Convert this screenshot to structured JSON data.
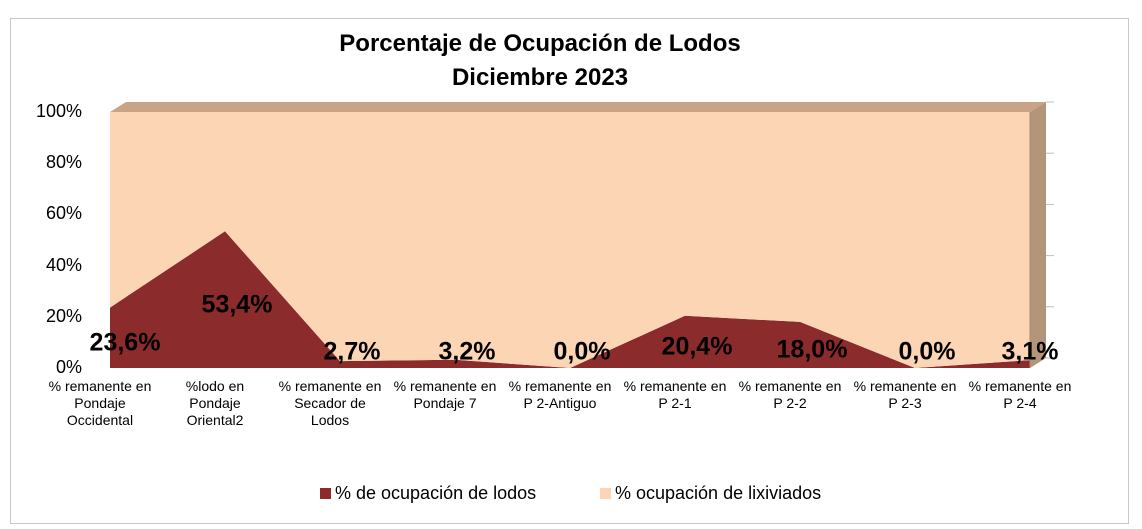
{
  "chart_data": {
    "type": "stacked_area",
    "title": "Porcentaje de Ocupación de Lodos",
    "subtitle": "Diciembre 2023",
    "categories": [
      "% remanente en Pondaje Occidental",
      "%lodo en Pondaje Oriental2",
      "% remanente en Secador de Lodos",
      "% remanente en Pondaje 7",
      "% remanente en P 2-Antiguo",
      "% remanente en P 2-1",
      "% remanente en P 2-2",
      "% remanente en P 2-3",
      "% remanente en P 2-4"
    ],
    "series": [
      {
        "name": "% de ocupación de lodos",
        "color": "#8c2b2b",
        "values": [
          23.6,
          53.4,
          2.7,
          3.2,
          0.0,
          20.4,
          18.0,
          0.0,
          3.1
        ],
        "value_labels": [
          "23,6%",
          "53,4%",
          "2,7%",
          "3,2%",
          "0,0%",
          "20,4%",
          "18,0%",
          "0,0%",
          "3,1%"
        ]
      },
      {
        "name": "% ocupación de lixiviados",
        "color": "#fcd5b4",
        "values": [
          76.4,
          46.6,
          97.3,
          96.8,
          100.0,
          79.6,
          82.0,
          100.0,
          96.9
        ]
      }
    ],
    "ylim": [
      0,
      100
    ],
    "yticks": [
      {
        "value": 0,
        "label": "0%"
      },
      {
        "value": 20,
        "label": "20%"
      },
      {
        "value": 40,
        "label": "40%"
      },
      {
        "value": 60,
        "label": "60%"
      },
      {
        "value": 80,
        "label": "80%"
      },
      {
        "value": 100,
        "label": "100%"
      }
    ],
    "legend": "bottom"
  }
}
